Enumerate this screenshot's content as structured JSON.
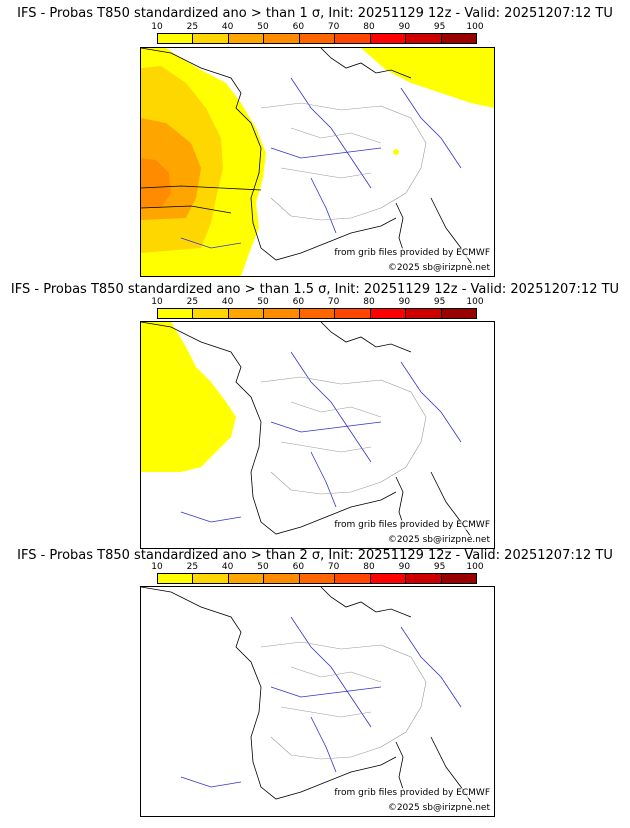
{
  "panels": [
    {
      "title": "IFS - Probas T850  standardized ano > than 1 σ, Init: 20251129 12z - Valid: 20251207:12 TU"
    },
    {
      "title": "IFS - Probas T850  standardized ano > than 1.5 σ, Init: 20251129 12z - Valid: 20251207:12 TU"
    },
    {
      "title": "IFS - Probas T850  standardized ano > than 2 σ, Init: 20251129 12z - Valid: 20251207:12 TU"
    }
  ],
  "colorbar": {
    "labels": [
      "10",
      "25",
      "40",
      "50",
      "60",
      "70",
      "80",
      "90",
      "95",
      "100"
    ],
    "colors": [
      "#ffff00",
      "#ffd700",
      "#ffa500",
      "#ff8c00",
      "#ff6600",
      "#ff4500",
      "#ff0000",
      "#cc0000",
      "#990000"
    ]
  },
  "credit": {
    "source": "from grib files provided by ECMWF",
    "copyright": "©2025 sb@irizpne.net"
  }
}
